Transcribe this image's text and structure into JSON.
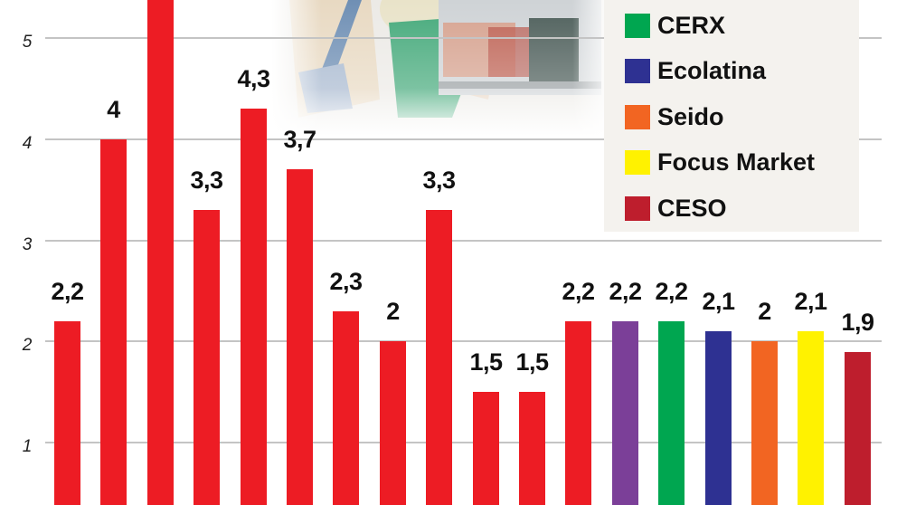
{
  "chart_data": {
    "type": "bar",
    "title": "",
    "xlabel": "",
    "ylabel": "",
    "ylim": [
      0,
      5.4
    ],
    "grid": true,
    "y_ticks": [
      1,
      2,
      3,
      4,
      5
    ],
    "legend_position": "top-right",
    "legend": [
      {
        "label": "CERX",
        "color": "#00a650"
      },
      {
        "label": "Ecolatina",
        "color": "#2e3192"
      },
      {
        "label": "Seido",
        "color": "#f26522"
      },
      {
        "label": "Focus Market",
        "color": "#fff200"
      },
      {
        "label": "CESO",
        "color": "#be1e2d"
      }
    ],
    "bars": [
      {
        "value": 2.2,
        "label": "2,2",
        "color": "#ed1c24"
      },
      {
        "value": 4.0,
        "label": "4",
        "color": "#ed1c24"
      },
      {
        "value": 5.6,
        "label": "",
        "color": "#ed1c24",
        "note": "bar extends beyond top edge; label not visible"
      },
      {
        "value": 3.3,
        "label": "3,3",
        "color": "#ed1c24"
      },
      {
        "value": 4.3,
        "label": "4,3",
        "color": "#ed1c24"
      },
      {
        "value": 3.7,
        "label": "3,7",
        "color": "#ed1c24"
      },
      {
        "value": 2.3,
        "label": "2,3",
        "color": "#ed1c24"
      },
      {
        "value": 2.0,
        "label": "2",
        "color": "#ed1c24"
      },
      {
        "value": 3.3,
        "label": "3,3",
        "color": "#ed1c24"
      },
      {
        "value": 1.5,
        "label": "1,5",
        "color": "#ed1c24"
      },
      {
        "value": 1.5,
        "label": "1,5",
        "color": "#ed1c24"
      },
      {
        "value": 2.2,
        "label": "2,2",
        "color": "#ed1c24"
      },
      {
        "value": 2.2,
        "label": "2,2",
        "color": "#7b3f98"
      },
      {
        "value": 2.2,
        "label": "2,2",
        "color": "#00a650"
      },
      {
        "value": 2.1,
        "label": "2,1",
        "color": "#2e3192"
      },
      {
        "value": 2.0,
        "label": "2",
        "color": "#f26522"
      },
      {
        "value": 2.1,
        "label": "2,1",
        "color": "#fff200"
      },
      {
        "value": 1.9,
        "label": "1,9",
        "color": "#be1e2d"
      }
    ]
  },
  "background_image": "photo-shoppers-in-supermarket-aisle"
}
